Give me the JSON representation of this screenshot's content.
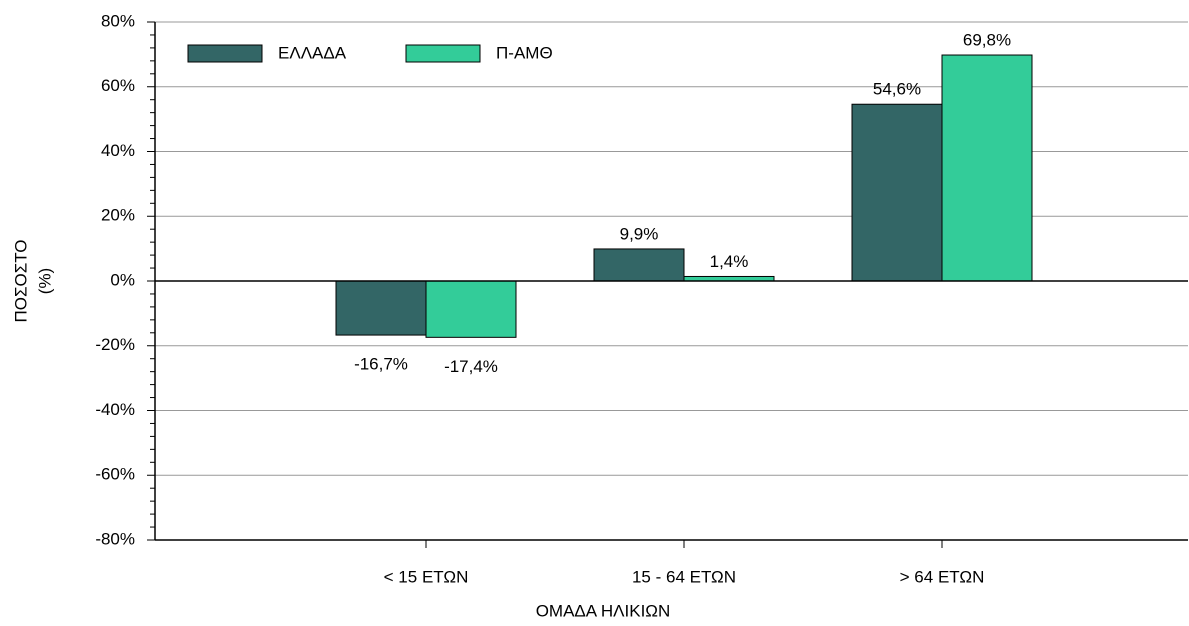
{
  "chart_data": {
    "type": "bar",
    "categories": [
      "< 15 ΕΤΩΝ",
      "15 - 64 ΕΤΩΝ",
      "> 64 ΕΤΩΝ"
    ],
    "series": [
      {
        "name": "ΕΛΛΑΔΑ",
        "color": "#336666",
        "values": [
          -16.7,
          9.9,
          54.6
        ],
        "value_labels": [
          "-16,7%",
          "9,9%",
          "54,6%"
        ]
      },
      {
        "name": "Π-ΑΜΘ",
        "color": "#33cc99",
        "values": [
          -17.4,
          1.4,
          69.8
        ],
        "value_labels": [
          "-17,4%",
          "1,4%",
          "69,8%"
        ]
      }
    ],
    "ylim": [
      -80,
      80
    ],
    "yticks": [
      {
        "value": -80,
        "label": "-80%"
      },
      {
        "value": -60,
        "label": "-60%"
      },
      {
        "value": -40,
        "label": "-40%"
      },
      {
        "value": -20,
        "label": "-20%"
      },
      {
        "value": 0,
        "label": "0%"
      },
      {
        "value": 20,
        "label": "20%"
      },
      {
        "value": 40,
        "label": "40%"
      },
      {
        "value": 60,
        "label": "60%"
      },
      {
        "value": 80,
        "label": "80%"
      }
    ],
    "x_label": "ΟΜΑΔΑ ΗΛΙΚΙΩΝ",
    "y_label": [
      "ΠΟΣΟΣΤΟ",
      "(%)"
    ],
    "grid": true,
    "legend": "upper left"
  }
}
